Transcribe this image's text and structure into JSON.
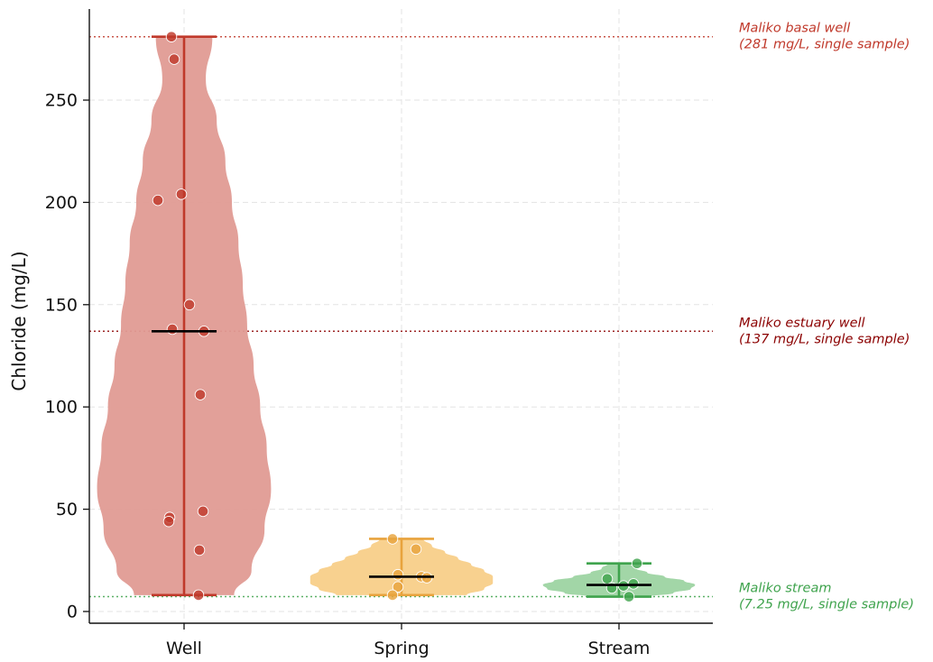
{
  "chart_data": {
    "type": "violin",
    "ylabel": "Chloride (mg/L)",
    "ylim": [
      -6,
      294
    ],
    "yticks": [
      "0",
      "50",
      "100",
      "150",
      "200",
      "250"
    ],
    "ytick_values": [
      0,
      50,
      100,
      150,
      200,
      250
    ],
    "grid": true,
    "categories": [
      "Well",
      "Spring",
      "Stream"
    ],
    "series": [
      {
        "name": "Well",
        "color": "#c0392b",
        "fill": "#e09b94",
        "min": 8,
        "max": 281,
        "median": 137,
        "points": [
          281,
          270,
          204,
          201,
          150,
          138,
          137,
          106,
          49,
          46,
          44,
          30,
          8
        ],
        "density_levels": [
          8,
          20,
          40,
          60,
          80,
          100,
          120,
          140,
          160,
          180,
          200,
          220,
          240,
          260,
          281
        ],
        "density_halfwidths": [
          0.23,
          0.31,
          0.37,
          0.4,
          0.38,
          0.35,
          0.32,
          0.29,
          0.27,
          0.25,
          0.22,
          0.19,
          0.15,
          0.1,
          0.13
        ]
      },
      {
        "name": "Spring",
        "color": "#e8a33d",
        "fill": "#f8cf89",
        "min": 8,
        "max": 35.5,
        "median": 17,
        "points": [
          35.5,
          30.5,
          18,
          17,
          16.5,
          12,
          8
        ],
        "density_levels": [
          8,
          11,
          14,
          17,
          20,
          23,
          26,
          29,
          32,
          35.5
        ],
        "density_halfwidths": [
          0.3,
          0.38,
          0.42,
          0.42,
          0.38,
          0.32,
          0.26,
          0.2,
          0.14,
          0.1
        ]
      },
      {
        "name": "Stream",
        "color": "#3fa34d",
        "fill": "#9dd4a2",
        "min": 7.25,
        "max": 23.5,
        "median": 13,
        "points": [
          23.5,
          16,
          13.5,
          12.5,
          11.5,
          7.25
        ],
        "density_levels": [
          7.25,
          9,
          11,
          13,
          15,
          17,
          19,
          21,
          23.5
        ],
        "density_halfwidths": [
          0.14,
          0.25,
          0.33,
          0.35,
          0.3,
          0.21,
          0.13,
          0.08,
          0.05
        ]
      }
    ],
    "reference_lines": [
      {
        "value": 281,
        "color": "#c0392b",
        "label_line1": "Maliko basal well",
        "label_line2": "(281 mg/L, single sample)"
      },
      {
        "value": 137,
        "color": "#8b0000",
        "label_line1": "Maliko estuary well",
        "label_line2": "(137 mg/L, single sample)"
      },
      {
        "value": 7.25,
        "color": "#3fa34d",
        "label_line1": "Maliko stream",
        "label_line2": "(7.25 mg/L, single sample)"
      }
    ]
  }
}
